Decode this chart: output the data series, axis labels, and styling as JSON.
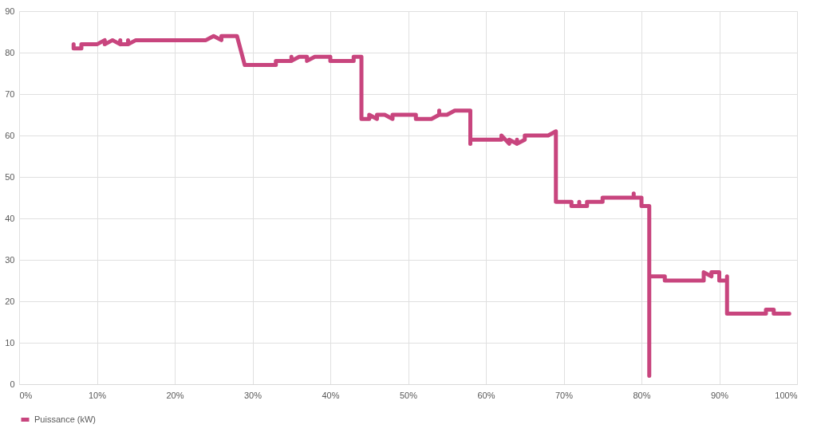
{
  "chart_data": {
    "type": "line",
    "legend": "bottom",
    "grid": true,
    "line_style": "solid",
    "xlim": [
      0,
      100
    ],
    "ylim": [
      0,
      90
    ],
    "xticks": [
      {
        "value": 0,
        "label": "0%"
      },
      {
        "value": 10,
        "label": "10%"
      },
      {
        "value": 20,
        "label": "20%"
      },
      {
        "value": 30,
        "label": "30%"
      },
      {
        "value": 40,
        "label": "40%"
      },
      {
        "value": 50,
        "label": "50%"
      },
      {
        "value": 60,
        "label": "60%"
      },
      {
        "value": 70,
        "label": "70%"
      },
      {
        "value": 80,
        "label": "80%"
      },
      {
        "value": 90,
        "label": "90%"
      },
      {
        "value": 100,
        "label": "100%"
      }
    ],
    "yticks": [
      0,
      10,
      20,
      30,
      40,
      50,
      60,
      70,
      80,
      90
    ],
    "series": [
      {
        "name": "Puissance (kW)",
        "color": "#c8457e",
        "x": [
          7,
          7,
          8,
          8,
          10,
          11,
          11,
          12,
          13,
          13,
          13,
          14,
          14,
          14,
          15,
          24,
          25,
          26,
          26,
          28,
          29,
          33,
          33,
          35,
          35,
          35,
          36,
          37,
          37,
          38,
          40,
          40,
          43,
          43,
          44,
          44,
          45,
          45,
          46,
          46,
          47,
          48,
          48,
          51,
          51,
          53,
          54,
          54,
          54,
          55,
          56,
          58,
          58,
          58,
          62,
          62,
          63,
          63,
          64,
          64,
          64,
          65,
          65,
          68,
          69,
          69,
          71,
          71,
          72,
          72,
          72,
          73,
          73,
          75,
          75,
          79,
          79,
          79,
          80,
          80,
          81,
          81,
          81,
          83,
          83,
          88,
          88,
          89,
          89,
          90,
          90,
          91,
          91,
          91,
          96,
          96,
          97,
          97,
          99
        ],
        "values": [
          82,
          81,
          81,
          82,
          82,
          83,
          82,
          83,
          82,
          83,
          82,
          82,
          83,
          82,
          83,
          83,
          84,
          83,
          84,
          84,
          77,
          77,
          78,
          78,
          79,
          78,
          79,
          79,
          78,
          79,
          79,
          78,
          78,
          79,
          79,
          64,
          64,
          65,
          64,
          65,
          65,
          64,
          65,
          65,
          64,
          64,
          65,
          66,
          65,
          65,
          66,
          66,
          58,
          59,
          59,
          60,
          58,
          59,
          58,
          59,
          58,
          59,
          60,
          60,
          61,
          44,
          44,
          43,
          43,
          44,
          43,
          43,
          44,
          44,
          45,
          45,
          46,
          45,
          45,
          43,
          43,
          2,
          26,
          26,
          25,
          25,
          27,
          26,
          27,
          27,
          25,
          25,
          26,
          17,
          17,
          18,
          18,
          17,
          17
        ]
      }
    ]
  }
}
